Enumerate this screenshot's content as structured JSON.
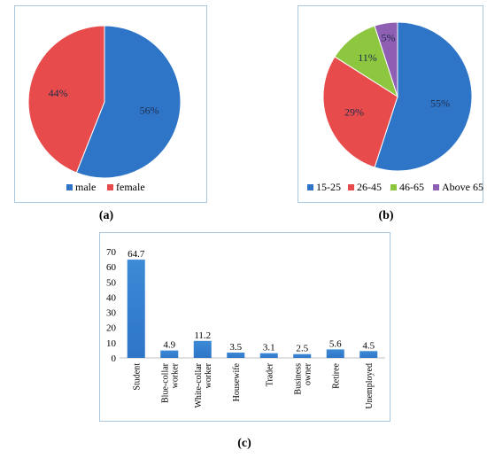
{
  "chart_data": [
    {
      "type": "pie",
      "labels": [
        "male",
        "female"
      ],
      "values": [
        56,
        44
      ],
      "value_labels": [
        "56%",
        "44%"
      ],
      "colors": [
        "#2e75c8",
        "#e84b4b"
      ],
      "legend_position": "bottom",
      "caption": "(a)"
    },
    {
      "type": "pie",
      "labels": [
        "15-25",
        "26-45",
        "46-65",
        "Above 65"
      ],
      "values": [
        55,
        29,
        11,
        5
      ],
      "value_labels": [
        "55%",
        "29%",
        "11%",
        "5%"
      ],
      "colors": [
        "#2e75c8",
        "#e84b4b",
        "#8dc63f",
        "#8e5fb2"
      ],
      "legend_position": "bottom",
      "caption": "(b)"
    },
    {
      "type": "bar",
      "categories": [
        [
          "Student"
        ],
        [
          "Blue-collar",
          "worker"
        ],
        [
          "White-collar",
          "worker"
        ],
        [
          "Housewife"
        ],
        [
          "Trader"
        ],
        [
          "Business",
          "owner"
        ],
        [
          "Retiree"
        ],
        [
          "Unemployed"
        ]
      ],
      "values": [
        64.7,
        4.9,
        11.2,
        3.5,
        3.1,
        2.5,
        5.6,
        4.5
      ],
      "value_labels": [
        "64.7",
        "4.9",
        "11.2",
        "3.5",
        "3.1",
        "2.5",
        "5.6",
        "4.5"
      ],
      "ylim": [
        0,
        70
      ],
      "yticks": [
        "0",
        "10",
        "20",
        "30",
        "40",
        "50",
        "60",
        "70"
      ],
      "color": "#2e75c8",
      "caption": "(c)"
    }
  ]
}
